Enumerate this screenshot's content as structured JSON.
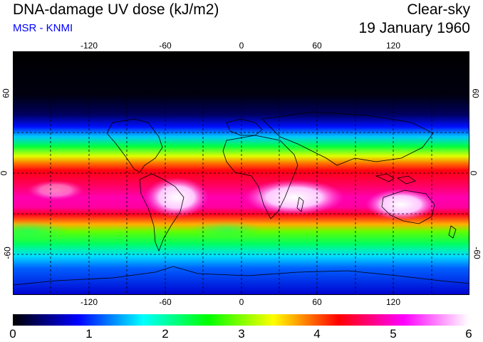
{
  "header": {
    "title": "DNA-damage UV dose (kJ/m2)",
    "subtitle": "MSR - KNMI",
    "sky_condition": "Clear-sky",
    "date": "19 January 1960"
  },
  "map": {
    "longitude_ticks": [
      "-120",
      "-60",
      "0",
      "60",
      "120"
    ],
    "latitude_ticks_left": [
      "60",
      "0",
      "-60"
    ],
    "latitude_ticks_right": [
      "60",
      "0",
      "-60"
    ],
    "longitude_range": [
      -180,
      180
    ],
    "latitude_range": [
      -90,
      90
    ]
  },
  "colorbar": {
    "labels": [
      "0",
      "1",
      "2",
      "3",
      "4",
      "5",
      "6"
    ],
    "min": 0,
    "max": 6,
    "colors": [
      "#000000",
      "#0000ff",
      "#00ffff",
      "#00ff00",
      "#ffff00",
      "#ff0000",
      "#ff00ff",
      "#ffffff"
    ]
  }
}
